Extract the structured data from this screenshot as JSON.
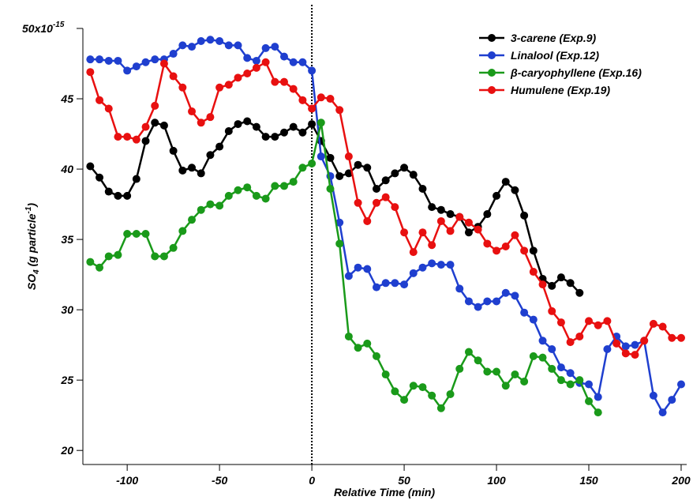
{
  "chart_data": {
    "type": "line",
    "xlabel": "Relative Time (min)",
    "ylabel": [
      "SO",
      "4",
      "  (g particle",
      "-1",
      ")"
    ],
    "y_exponent": "-15",
    "xlim": [
      -124,
      203
    ],
    "ylim": [
      19,
      50
    ],
    "xticks": [
      -100,
      -50,
      0,
      50,
      100,
      150,
      200
    ],
    "yticks": [
      20,
      25,
      30,
      35,
      40,
      45,
      {
        "value": 50,
        "label": "50x10"
      }
    ],
    "vline": 0,
    "legend": "top-right",
    "x": [
      -120,
      -115,
      -110,
      -105,
      -100,
      -95,
      -90,
      -85,
      -80,
      -75,
      -70,
      -65,
      -60,
      -55,
      -50,
      -45,
      -40,
      -35,
      -30,
      -25,
      -20,
      -15,
      -10,
      -5,
      0,
      5,
      10,
      15,
      20,
      25,
      30,
      35,
      40,
      45,
      50,
      55,
      60,
      65,
      70,
      75,
      80,
      85,
      90,
      95,
      100,
      105,
      110,
      115,
      120,
      125,
      130,
      135,
      140,
      145,
      150,
      155,
      160,
      165,
      170,
      175,
      180,
      185,
      190,
      195,
      200
    ],
    "series": [
      {
        "name": "3-carene (Exp.9)",
        "color": "#000000",
        "values": [
          40.2,
          39.4,
          38.4,
          38.1,
          38.1,
          39.3,
          42.0,
          43.3,
          43.1,
          41.3,
          39.9,
          40.1,
          39.7,
          41.0,
          41.6,
          42.7,
          43.2,
          43.4,
          43.0,
          42.3,
          42.3,
          42.6,
          43.0,
          42.6,
          43.2,
          42.0,
          40.8,
          39.5,
          39.7,
          40.3,
          40.1,
          38.6,
          39.2,
          39.7,
          40.1,
          39.6,
          38.6,
          37.3,
          37.1,
          36.8,
          36.6,
          35.5,
          35.9,
          36.8,
          38.1,
          39.1,
          38.5,
          36.7,
          34.2,
          32.2,
          31.7,
          32.3,
          31.9,
          31.2,
          null,
          null,
          null,
          null,
          null,
          null,
          null,
          null,
          null,
          null,
          null
        ]
      },
      {
        "name": "Linalool (Exp.12)",
        "color": "#1f3fcf",
        "values": [
          47.8,
          47.8,
          47.7,
          47.7,
          47.0,
          47.3,
          47.6,
          47.8,
          47.8,
          48.2,
          48.8,
          48.7,
          49.1,
          49.2,
          49.1,
          48.8,
          48.8,
          47.9,
          47.7,
          48.6,
          48.7,
          48.0,
          47.6,
          47.6,
          47.0,
          40.9,
          39.5,
          36.2,
          32.4,
          33.0,
          32.9,
          31.6,
          31.9,
          31.9,
          31.8,
          32.6,
          33.0,
          33.3,
          33.2,
          33.2,
          31.5,
          30.6,
          30.2,
          30.6,
          30.6,
          31.2,
          31.0,
          29.8,
          29.3,
          27.8,
          27.2,
          25.9,
          25.5,
          24.8,
          24.7,
          23.8,
          27.2,
          28.1,
          27.4,
          27.5,
          27.8,
          23.9,
          22.7,
          23.6,
          24.7
        ]
      },
      {
        "name": "β-caryophyllene (Exp.16)",
        "color": "#1a9a1a",
        "values": [
          33.4,
          33.0,
          33.8,
          33.9,
          35.4,
          35.4,
          35.4,
          33.8,
          33.8,
          34.4,
          35.6,
          36.4,
          37.1,
          37.5,
          37.4,
          38.1,
          38.5,
          38.7,
          38.1,
          37.9,
          38.8,
          38.8,
          39.1,
          40.1,
          40.4,
          43.3,
          38.6,
          34.7,
          28.1,
          27.3,
          27.6,
          26.7,
          25.4,
          24.2,
          23.6,
          24.6,
          24.5,
          23.9,
          23.0,
          24.0,
          25.8,
          27.0,
          26.4,
          25.6,
          25.6,
          24.6,
          25.4,
          24.9,
          26.7,
          26.6,
          25.8,
          25.0,
          24.7,
          25.0,
          23.5,
          22.7,
          null,
          null,
          null,
          null,
          null,
          null,
          null,
          null,
          null
        ]
      },
      {
        "name": "Humulene (Exp.19)",
        "color": "#e81010",
        "values": [
          46.9,
          44.9,
          44.3,
          42.3,
          42.3,
          42.1,
          43.0,
          44.5,
          47.5,
          46.6,
          45.8,
          44.1,
          43.3,
          43.7,
          45.8,
          46.0,
          46.5,
          46.8,
          47.2,
          47.6,
          46.2,
          46.2,
          45.7,
          44.9,
          44.3,
          45.1,
          45.0,
          44.2,
          40.9,
          37.6,
          36.3,
          37.6,
          38.0,
          37.3,
          35.5,
          34.1,
          35.5,
          34.6,
          36.3,
          35.6,
          36.6,
          36.2,
          35.7,
          34.7,
          34.2,
          34.5,
          35.3,
          34.2,
          32.7,
          31.8,
          29.9,
          29.1,
          27.7,
          28.1,
          29.2,
          28.9,
          29.2,
          27.6,
          26.9,
          26.8,
          27.8,
          29.0,
          28.8,
          28.0,
          28.0
        ]
      }
    ]
  }
}
